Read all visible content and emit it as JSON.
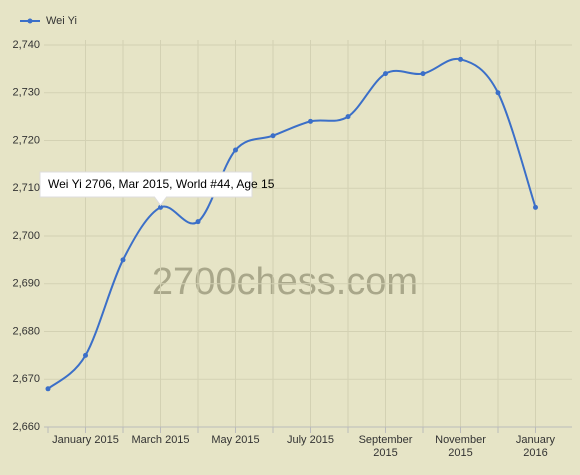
{
  "chart_data": {
    "type": "line",
    "categories": [
      null,
      "January 2015",
      null,
      "March 2015",
      null,
      "May 2015",
      null,
      "July 2015",
      null,
      "September 2015",
      null,
      "November 2015",
      null,
      "January 2016"
    ],
    "series": [
      {
        "name": "Wei Yi",
        "color": "#3b6fc8",
        "values": [
          2668,
          2675,
          2695,
          2706,
          2703,
          2718,
          2721,
          2724,
          2725,
          2734,
          2734,
          2737,
          2730,
          2706
        ]
      }
    ],
    "ylim": [
      2660,
      2740
    ],
    "yticks": [
      {
        "value": 2660,
        "label": "2,660"
      },
      {
        "value": 2670,
        "label": "2,670"
      },
      {
        "value": 2680,
        "label": "2,680"
      },
      {
        "value": 2690,
        "label": "2,690"
      },
      {
        "value": 2700,
        "label": "2,700"
      },
      {
        "value": 2710,
        "label": "2,710"
      },
      {
        "value": 2720,
        "label": "2,720"
      },
      {
        "value": 2730,
        "label": "2,730"
      },
      {
        "value": 2740,
        "label": "2,740"
      }
    ],
    "grid": true,
    "legend": "top-left",
    "tooltip": {
      "text": "Wei Yi 2706, Mar 2015, World #44, Age 15",
      "point": 3
    },
    "watermark": "2700chess.com"
  }
}
